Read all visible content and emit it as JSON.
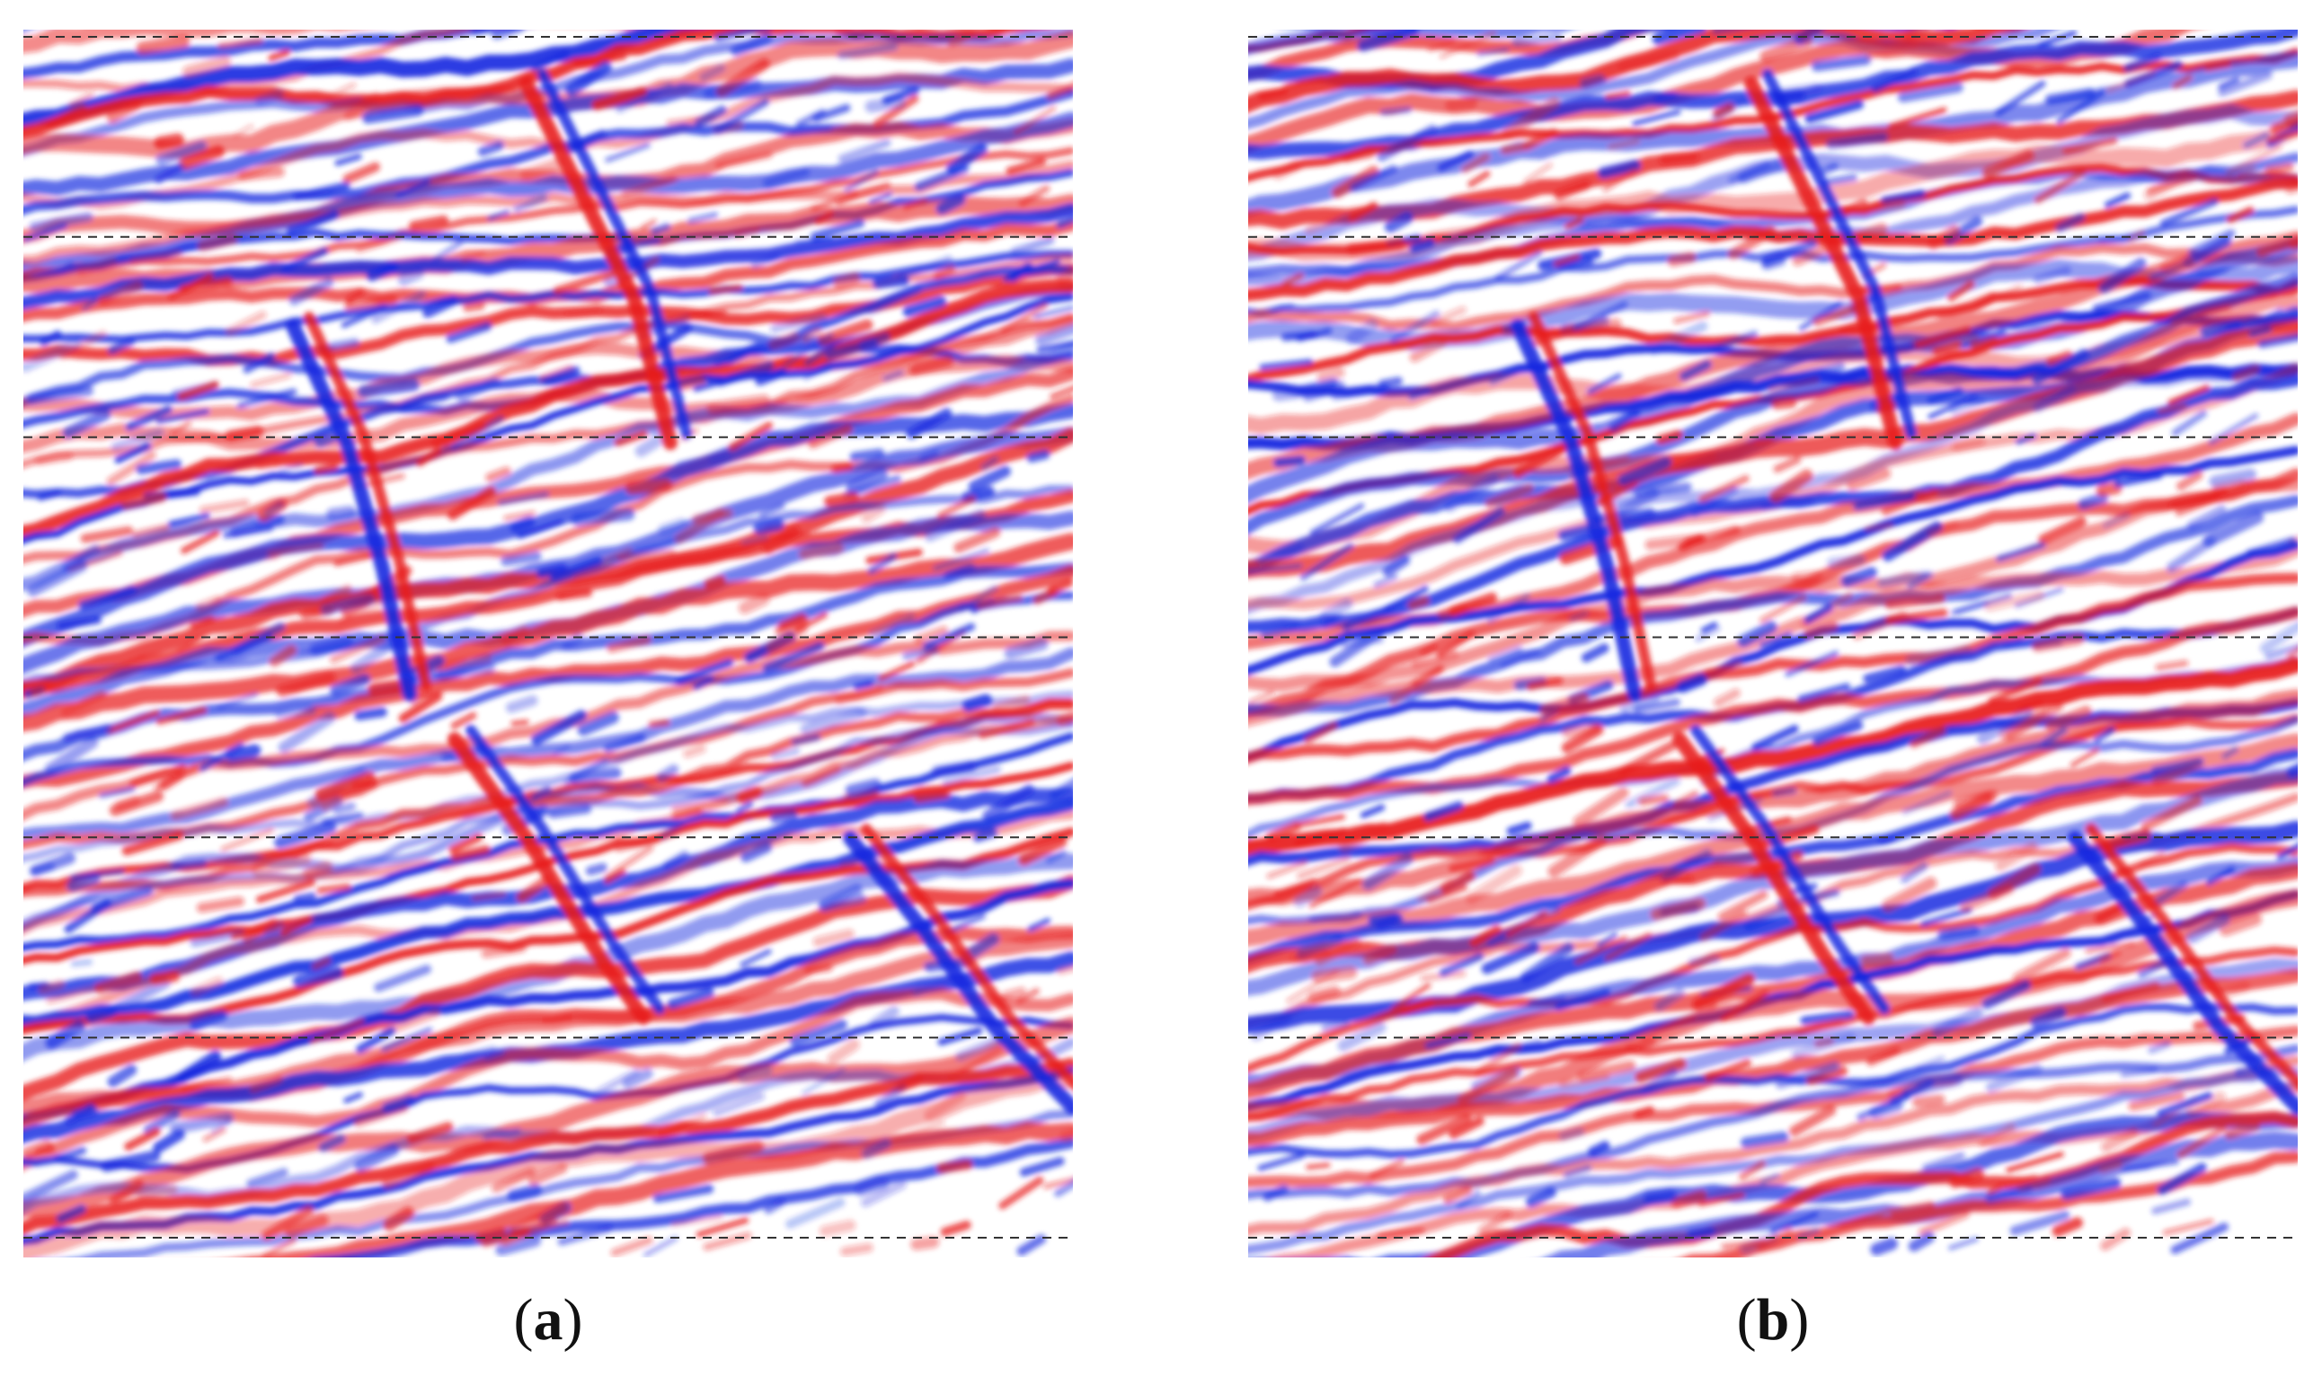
{
  "figure": {
    "panels": [
      {
        "id": "a",
        "caption_open": "(",
        "caption_label": "a",
        "caption_close": ")"
      },
      {
        "id": "b",
        "caption_open": "(",
        "caption_label": "b",
        "caption_close": ")"
      }
    ],
    "colors": {
      "positive": "#e81c1c",
      "negative": "#1428e0",
      "background": "#ffffff",
      "guide_line": "#333333"
    },
    "guide_lines": {
      "count": 7,
      "style": "dashed"
    }
  }
}
